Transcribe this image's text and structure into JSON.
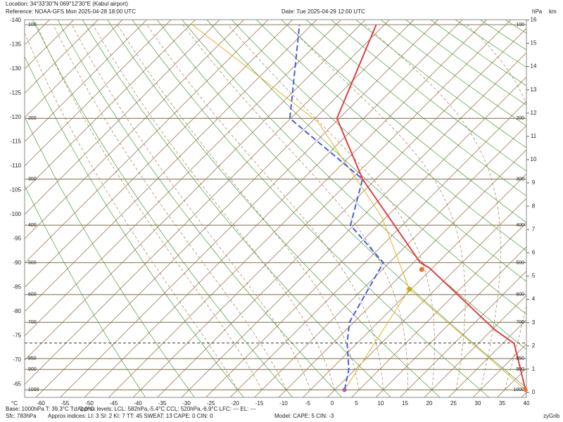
{
  "header": {
    "location": "Location:  34°33'30\"N  069°12'30\"E (Kabul airport)",
    "reference": "Reference: NOAA-GFS Mon 2025-04-28 18:00 UTC",
    "date": "Date: Tue 2025-04-29 12:00 UTC",
    "hpa_unit": "hPa",
    "km_unit": "km",
    "celsius_unit": "°C"
  },
  "footer": {
    "base": "Base: 1000hPa  T: 39.3°C  Td: 2.0°C",
    "levels": "Approx levels:  LCL: 582hPa,-5.4°C   CCL: 520hPa,-6.9°C   LFC: ---   EL: ---",
    "sfc": "Sfc: 783hPa",
    "indices": "Approx indices:  LI: 3   SI: 2   KI: 7   TT: 45   SWEAT: 13   CAPE: 0  CIN: 0",
    "model": "Model: CAPE: 5 CIN: -3",
    "brand": "zyGrib"
  },
  "chart_data": {
    "type": "skewt",
    "xticks": [
      -60,
      -55,
      -50,
      -45,
      -40,
      -35,
      -30,
      -25,
      -20,
      -15,
      -10,
      -5,
      0,
      5,
      10,
      15,
      20,
      25,
      30,
      35,
      40
    ],
    "left_ticks": [
      -140,
      -135,
      -130,
      -125,
      -120,
      -115,
      -110,
      -105,
      -100,
      -95,
      -90,
      -85,
      -80,
      -75,
      -70,
      -65
    ],
    "pressure_ticks": [
      100,
      200,
      300,
      400,
      500,
      600,
      700,
      850,
      900,
      1000
    ],
    "km_ticks": [
      0,
      1,
      2,
      3,
      4,
      5,
      6,
      7,
      8,
      9,
      10,
      11,
      12,
      13,
      14,
      15,
      16
    ],
    "surface_pressure": 783,
    "temperature": {
      "color": "#e04040",
      "pressure": [
        1000,
        785,
        730,
        515,
        500,
        300,
        200,
        100
      ],
      "values": [
        39.3,
        27.4,
        20.7,
        -5.7,
        -8.6,
        -37.7,
        -55.5,
        -66.7
      ]
    },
    "dewpoint": {
      "color": "#4a5ee0",
      "pressure": [
        1000,
        900,
        785,
        700,
        500,
        400,
        300,
        200,
        100
      ],
      "values": [
        2.0,
        -1.3,
        -7,
        -10.9,
        -16.2,
        -30.7,
        -37.7,
        -65.2,
        -82.5
      ]
    },
    "parcel": {
      "color": "#e0b030",
      "pressure": [
        1000,
        582,
        380,
        205,
        100
      ],
      "values": [
        39.3,
        -5.4,
        -26,
        -58.7,
        -104.6
      ]
    },
    "mixing": {
      "color": "#e0b030",
      "pressure": [
        1000,
        582
      ],
      "values": [
        2.0,
        -5.4
      ]
    },
    "lcl": {
      "color": "#d0a800",
      "pressure": 582,
      "value": -5.4
    },
    "ccl": {
      "color": "#f07030",
      "pressure": 520,
      "value": -6.9
    }
  }
}
